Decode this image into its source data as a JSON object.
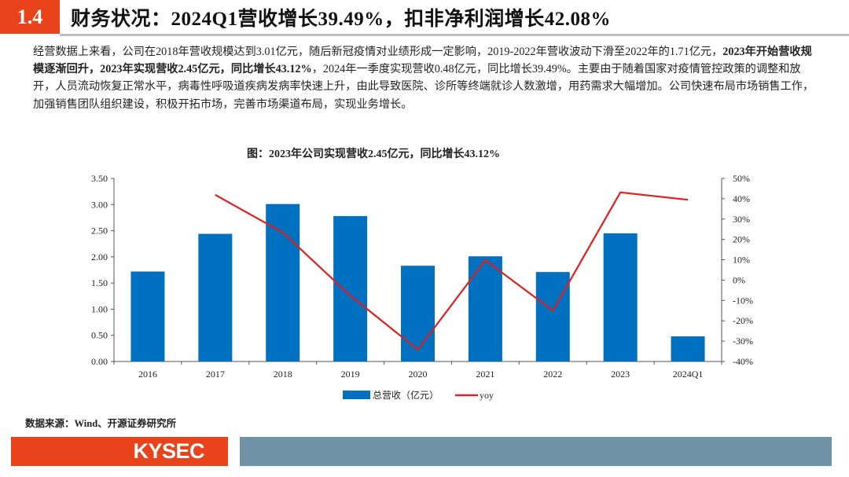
{
  "header": {
    "section_number": "1.4",
    "title": "财务状况：2024Q1营收增长39.49%，扣非净利润增长42.08%"
  },
  "body": {
    "segments": [
      {
        "text": "经营数据上来看，公司在2018年营收规模达到3.01亿元，随后新冠疫情对业绩形成一定影响，2019-2022年营收波动下滑至2022年的1.71亿元，",
        "bold": false
      },
      {
        "text": "2023年开始营收规模逐渐回升，2023年实现营收2.45亿元，同比增长43.12%",
        "bold": true
      },
      {
        "text": "，2024年一季度实现营收0.48亿元，同比增长39.49%。主要由于随着国家对疫情管控政策的调整和放开，人员流动恢复正常水平，病毒性呼吸道疾病发病率快速上升，由此导致医院、诊所等终端就诊人数激增，用药需求大幅增加。公司快速布局市场销售工作，加强销售团队组织建设，积极开拓市场，完善市场渠道布局，实现业务增长。",
        "bold": false
      }
    ]
  },
  "chart_data": {
    "type": "bar+line",
    "title": "图：2023年公司实现营收2.45亿元，同比增长43.12%",
    "categories": [
      "2016",
      "2017",
      "2018",
      "2019",
      "2020",
      "2021",
      "2022",
      "2023",
      "2024Q1"
    ],
    "series": [
      {
        "name": "总营收（亿元）",
        "type": "bar",
        "axis": "left",
        "color": "#0070c0",
        "values": [
          1.72,
          2.44,
          3.01,
          2.78,
          1.83,
          2.01,
          1.71,
          2.45,
          0.48
        ]
      },
      {
        "name": "yoy",
        "type": "line",
        "axis": "right",
        "color": "#e02020",
        "values": [
          null,
          41.9,
          23.4,
          -7.6,
          -34.2,
          9.8,
          -15.0,
          43.12,
          39.49
        ]
      }
    ],
    "left_axis": {
      "range": [
        0,
        3.5
      ],
      "ticks": [
        "0.00",
        "0.50",
        "1.00",
        "1.50",
        "2.00",
        "2.50",
        "3.00",
        "3.50"
      ]
    },
    "right_axis": {
      "range": [
        -40,
        50
      ],
      "unit": "%",
      "ticks": [
        "-40%",
        "-30%",
        "-20%",
        "-10%",
        "0%",
        "10%",
        "20%",
        "30%",
        "40%",
        "50%"
      ]
    },
    "grid": false,
    "legend": "bottom"
  },
  "source": "数据来源：Wind、开源证券研究所",
  "footer": {
    "logo": "KYSEC"
  }
}
